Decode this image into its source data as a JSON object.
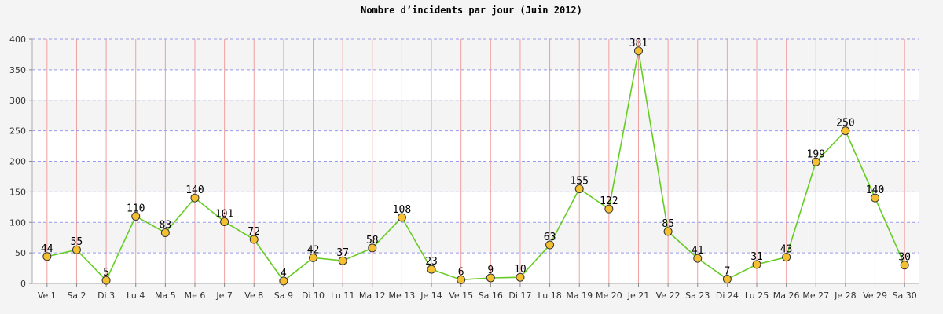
{
  "chart_data": {
    "type": "line",
    "title": "Nombre d’incidents par jour (Juin 2012)",
    "xlabel": "",
    "ylabel": "",
    "ylim": [
      0,
      400
    ],
    "yticks": [
      0,
      50,
      100,
      150,
      200,
      250,
      300,
      350,
      400
    ],
    "grid": true,
    "legend": "none",
    "categories": [
      "Ve 1",
      "Sa 2",
      "Di 3",
      "Lu 4",
      "Ma 5",
      "Me 6",
      "Je 7",
      "Ve 8",
      "Sa 9",
      "Di 10",
      "Lu 11",
      "Ma 12",
      "Me 13",
      "Je 14",
      "Ve 15",
      "Sa 16",
      "Di 17",
      "Lu 18",
      "Ma 19",
      "Me 20",
      "Je 21",
      "Ve 22",
      "Sa 23",
      "Di 24",
      "Lu 25",
      "Ma 26",
      "Me 27",
      "Je 28",
      "Ve 29",
      "Sa 30"
    ],
    "values": [
      44,
      55,
      5,
      110,
      83,
      140,
      101,
      72,
      4,
      42,
      37,
      58,
      108,
      23,
      6,
      9,
      10,
      63,
      155,
      122,
      381,
      85,
      41,
      7,
      31,
      43,
      199,
      250,
      140,
      30
    ],
    "colors": {
      "line": "#66cc22",
      "marker_fill": "#f5c030",
      "marker_stroke": "#333333",
      "vgrid": "#f0a0a0",
      "hgrid": "#9999ee",
      "band_light": "#ffffff",
      "band_dark": "#f4f4f4"
    }
  }
}
